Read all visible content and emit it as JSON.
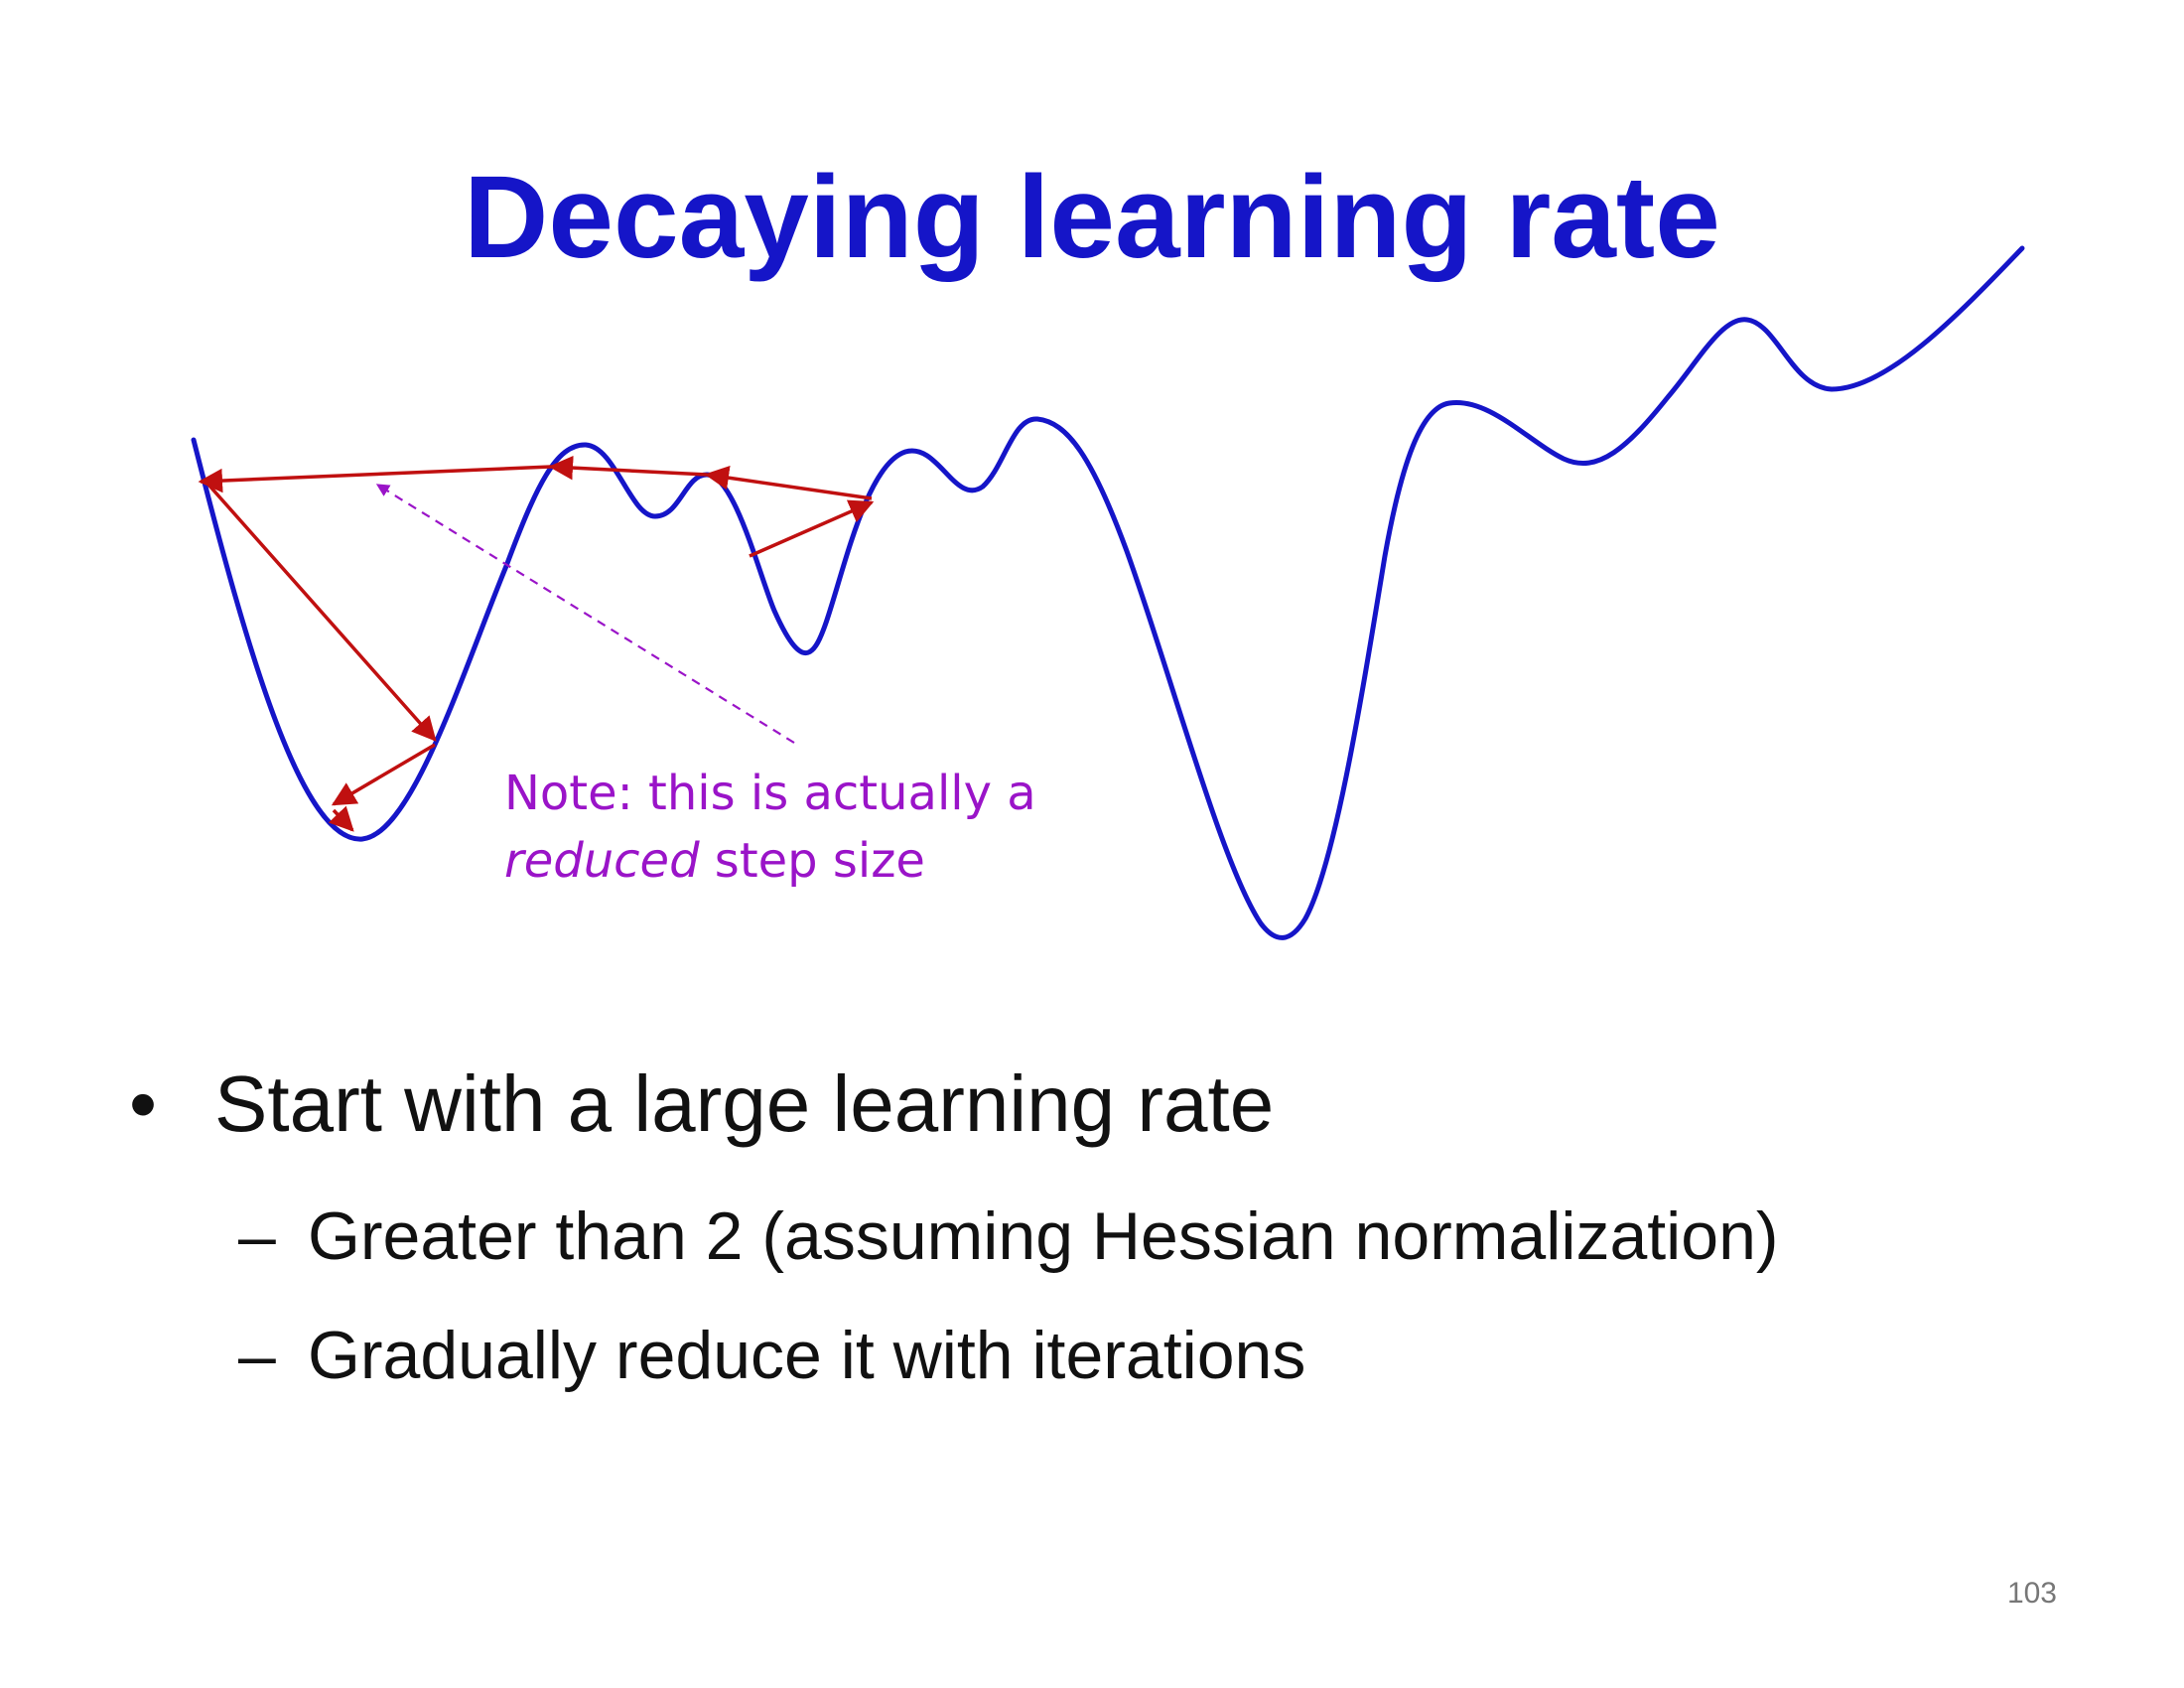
{
  "slide": {
    "title": "Decaying learning rate",
    "note": {
      "line1": "Note: this is actually a",
      "line2_em": "reduced",
      "line2_rest": " step size"
    },
    "bullets": [
      {
        "text": "Start with a large learning rate",
        "marker": "•",
        "sub": [
          {
            "marker": "–",
            "text": "Greater than 2 (assuming Hessian normalization)"
          },
          {
            "marker": "–",
            "text": "Gradually reduce it with iterations"
          }
        ]
      }
    ],
    "page_number": "103"
  },
  "colors": {
    "title": "#1515c8",
    "curve": "#1515c8",
    "step_arrows": "#c01010",
    "note": "#9a14c8"
  }
}
